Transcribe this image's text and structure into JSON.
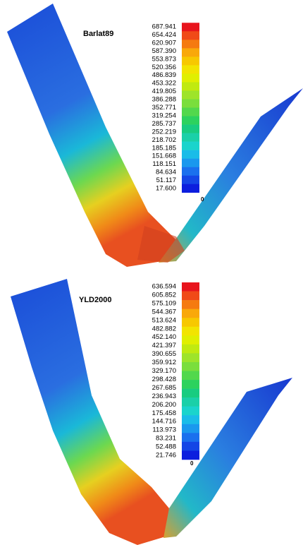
{
  "panels": [
    {
      "title": "Barlat89",
      "legend_labels": [
        "687.941",
        "654.424",
        "620.907",
        "587.390",
        "553.873",
        "520.356",
        "486.839",
        "453.322",
        "419.805",
        "386.288",
        "352.771",
        "319.254",
        "285.737",
        "252.219",
        "218.702",
        "185.185",
        "151.668",
        "118.151",
        "84.634",
        "51.117",
        "17.600"
      ],
      "zero_label": "0"
    },
    {
      "title": "YLD2000",
      "legend_labels": [
        "636.594",
        "605.852",
        "575.109",
        "544.367",
        "513.624",
        "482.882",
        "452.140",
        "421.397",
        "390.655",
        "359.912",
        "329.170",
        "298.428",
        "267.685",
        "236.943",
        "206.200",
        "175.458",
        "144.716",
        "113.973",
        "83.231",
        "52.488",
        "21.746"
      ],
      "zero_label": "0"
    }
  ],
  "colorbar_colors": [
    "#e8141c",
    "#f04a18",
    "#f57a10",
    "#f9a80a",
    "#f7c800",
    "#f2e400",
    "#e0ef00",
    "#c0ea10",
    "#9ee42a",
    "#7ade3c",
    "#52d84c",
    "#2cd25e",
    "#18cc80",
    "#1ad0a8",
    "#1ad4cc",
    "#1abce8",
    "#1a98ee",
    "#1a70ee",
    "#1446e6",
    "#0c1ede"
  ]
}
